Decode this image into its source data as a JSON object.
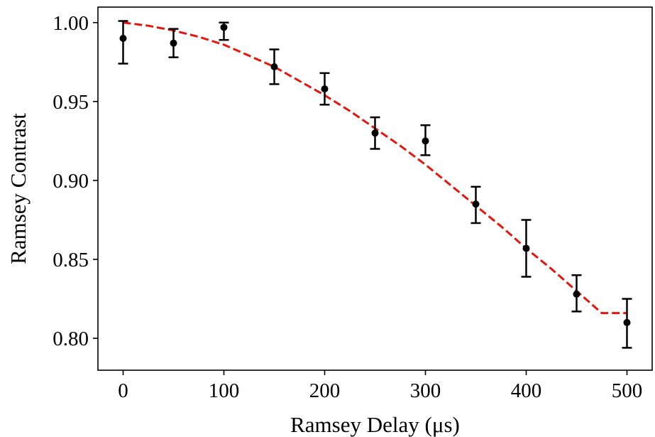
{
  "chart_data": {
    "type": "scatter",
    "xlabel": "Ramsey Delay (μs)",
    "ylabel": "Ramsey Contrast",
    "xlim": [
      -25,
      525
    ],
    "ylim": [
      0.7798,
      1.0098
    ],
    "xticks": [
      0,
      100,
      200,
      300,
      400,
      500
    ],
    "yticks": [
      0.8,
      0.85,
      0.9,
      0.95,
      1.0
    ],
    "xtick_labels": [
      "0",
      "100",
      "200",
      "300",
      "400",
      "500"
    ],
    "ytick_labels": [
      "0.80",
      "0.85",
      "0.90",
      "0.95",
      "1.00"
    ],
    "grid": false,
    "colors": {
      "data": "#000000",
      "fit": "#e8150e",
      "axes": "#000000"
    },
    "series": [
      {
        "type": "errorbar",
        "x": [
          0,
          50,
          100,
          150,
          200,
          250,
          300,
          350,
          400,
          450,
          500
        ],
        "y": [
          0.99,
          0.987,
          0.997,
          0.972,
          0.958,
          0.93,
          0.925,
          0.885,
          0.857,
          0.828,
          0.81
        ],
        "yerr_low": [
          0.016,
          0.009,
          0.008,
          0.011,
          0.01,
          0.01,
          0.009,
          0.012,
          0.018,
          0.011,
          0.016
        ],
        "yerr_high": [
          0.011,
          0.009,
          0.003,
          0.011,
          0.01,
          0.01,
          0.01,
          0.011,
          0.018,
          0.012,
          0.015
        ]
      },
      {
        "type": "line",
        "style": "dashed",
        "x": [
          0,
          25,
          50,
          75,
          100,
          125,
          150,
          175,
          200,
          225,
          250,
          275,
          300,
          325,
          350,
          375,
          400,
          425,
          450,
          475,
          500
        ],
        "y": [
          1.0,
          0.998,
          0.995,
          0.991,
          0.986,
          0.979,
          0.972,
          0.963,
          0.954,
          0.944,
          0.933,
          0.922,
          0.91,
          0.897,
          0.884,
          0.871,
          0.857,
          0.844,
          0.83,
          0.816,
          0.816
        ]
      }
    ]
  }
}
